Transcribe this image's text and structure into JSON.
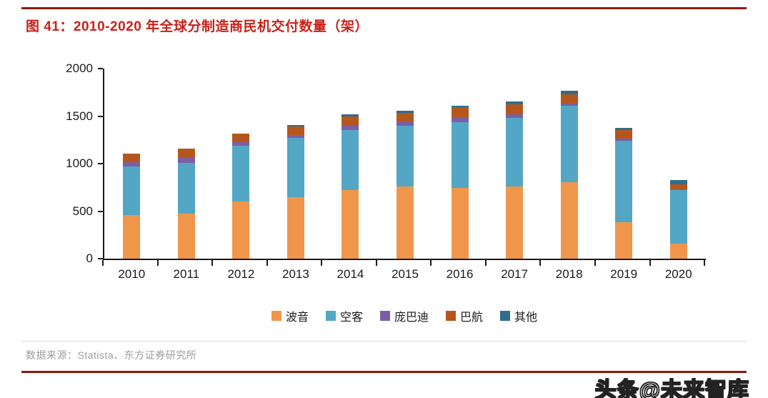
{
  "header": {
    "title": "图 41：2010-2020 年全球分制造商民机交付数量（架）"
  },
  "chart_data": {
    "type": "bar",
    "stacked": true,
    "title": "图 41：2010-2020 年全球分制造商民机交付数量（架）",
    "categories": [
      "2010",
      "2011",
      "2012",
      "2013",
      "2014",
      "2015",
      "2016",
      "2017",
      "2018",
      "2019",
      "2020"
    ],
    "series": [
      {
        "name": "波音",
        "color": "#F0964B",
        "values": [
          462,
          477,
          601,
          648,
          723,
          762,
          748,
          763,
          806,
          380,
          157
        ]
      },
      {
        "name": "空客",
        "color": "#53A7C5",
        "values": [
          510,
          534,
          588,
          626,
          629,
          635,
          688,
          718,
          800,
          863,
          566
        ]
      },
      {
        "name": "庞巴迪",
        "color": "#7A5FA8",
        "values": [
          40,
          50,
          35,
          30,
          50,
          45,
          50,
          40,
          25,
          20,
          10
        ]
      },
      {
        "name": "巴航",
        "color": "#B5571D",
        "values": [
          90,
          100,
          95,
          90,
          92,
          95,
          105,
          100,
          95,
          90,
          50
        ]
      },
      {
        "name": "其他",
        "color": "#2E6E8C",
        "values": [
          0,
          0,
          0,
          15,
          25,
          20,
          20,
          30,
          40,
          25,
          45
        ]
      }
    ],
    "xlabel": "",
    "ylabel": "",
    "ylim": [
      0,
      2000
    ],
    "yticks": [
      0,
      500,
      1000,
      1500,
      2000
    ],
    "grid": false,
    "legend_position": "bottom"
  },
  "footer": {
    "source": "数据来源：Statista、东方证券研究所"
  },
  "watermark": {
    "text": "头条@未来智库"
  },
  "colors": {
    "title_red": "#C9221A",
    "rule_maroon": "#8B1A0F",
    "axis_black": "#1a1a1a",
    "source_gray": "#9c9c9c",
    "divider_gray": "#dcdcdc"
  }
}
